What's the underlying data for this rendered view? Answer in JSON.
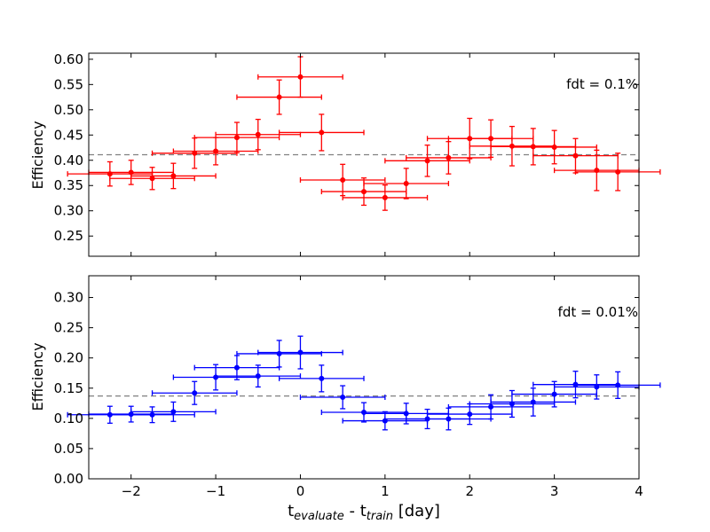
{
  "figure": {
    "xlabel_main": "t",
    "xlabel_sub1": "evaluate",
    "xlabel_mid": " - t",
    "xlabel_sub2": "train",
    "xlabel_unit": " [day]"
  },
  "chart_data": [
    {
      "type": "scatter",
      "name": "top-panel",
      "color": "#ff0000",
      "ylabel": "Efficiency",
      "annotation": "fdt = 0.1%",
      "xlim": [
        -2.5,
        4
      ],
      "ylim": [
        0.21,
        0.612
      ],
      "xticks": [
        -2,
        -1,
        0,
        1,
        2,
        3,
        4
      ],
      "yticks": [
        0.25,
        0.3,
        0.35,
        0.4,
        0.45,
        0.5,
        0.55,
        0.6
      ],
      "ytick_labels": [
        "0.25",
        "0.30",
        "0.35",
        "0.40",
        "0.45",
        "0.50",
        "0.55",
        "0.60"
      ],
      "reference_line": 0.411,
      "xerr": 0.5,
      "x": [
        -2.25,
        -2.0,
        -1.75,
        -1.5,
        -1.25,
        -1.0,
        -0.75,
        -0.5,
        -0.25,
        0.0,
        0.25,
        0.5,
        0.75,
        1.0,
        1.25,
        1.5,
        1.75,
        2.0,
        2.25,
        2.5,
        2.75,
        3.0,
        3.25,
        3.5,
        3.75
      ],
      "y": [
        0.373,
        0.376,
        0.364,
        0.369,
        0.414,
        0.418,
        0.445,
        0.451,
        0.525,
        0.565,
        0.455,
        0.361,
        0.338,
        0.326,
        0.354,
        0.399,
        0.405,
        0.443,
        0.443,
        0.428,
        0.427,
        0.426,
        0.409,
        0.38,
        0.377
      ],
      "yerr": [
        0.024,
        0.024,
        0.022,
        0.025,
        0.03,
        0.027,
        0.03,
        0.03,
        0.034,
        0.04,
        0.036,
        0.031,
        0.027,
        0.025,
        0.03,
        0.031,
        0.032,
        0.04,
        0.037,
        0.039,
        0.036,
        0.033,
        0.034,
        0.04,
        0.037
      ]
    },
    {
      "type": "scatter",
      "name": "bottom-panel",
      "color": "#0000ff",
      "ylabel": "Efficiency",
      "annotation": "fdt = 0.01%",
      "xlabel": "t_evaluate - t_train [day]",
      "xlim": [
        -2.5,
        4
      ],
      "ylim": [
        0.0,
        0.336
      ],
      "xticks": [
        -2,
        -1,
        0,
        1,
        2,
        3,
        4
      ],
      "xtick_labels": [
        "−2",
        "−1",
        "0",
        "1",
        "2",
        "3",
        "4"
      ],
      "yticks": [
        0.0,
        0.05,
        0.1,
        0.15,
        0.2,
        0.25,
        0.3
      ],
      "ytick_labels": [
        "0.00",
        "0.05",
        "0.10",
        "0.15",
        "0.20",
        "0.25",
        "0.30"
      ],
      "reference_line": 0.137,
      "xerr": 0.5,
      "x": [
        -2.25,
        -2.0,
        -1.75,
        -1.5,
        -1.25,
        -1.0,
        -0.75,
        -0.5,
        -0.25,
        0.0,
        0.25,
        0.5,
        0.75,
        1.0,
        1.25,
        1.5,
        1.75,
        2.0,
        2.25,
        2.5,
        2.75,
        3.0,
        3.25,
        3.5,
        3.75
      ],
      "y": [
        0.106,
        0.107,
        0.106,
        0.111,
        0.142,
        0.168,
        0.184,
        0.17,
        0.207,
        0.209,
        0.166,
        0.135,
        0.11,
        0.096,
        0.108,
        0.099,
        0.099,
        0.107,
        0.119,
        0.124,
        0.127,
        0.14,
        0.156,
        0.152,
        0.155
      ],
      "yerr": [
        0.014,
        0.013,
        0.013,
        0.016,
        0.019,
        0.021,
        0.02,
        0.018,
        0.022,
        0.027,
        0.022,
        0.019,
        0.016,
        0.015,
        0.017,
        0.016,
        0.018,
        0.017,
        0.02,
        0.022,
        0.023,
        0.021,
        0.022,
        0.02,
        0.022
      ]
    }
  ]
}
